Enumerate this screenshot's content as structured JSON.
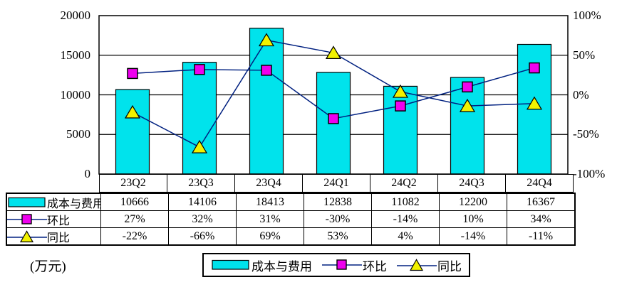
{
  "chart": {
    "unit_label": "(万元)",
    "left_axis": {
      "ticks": [
        {
          "label": "20000",
          "value": 20000
        },
        {
          "label": "15000",
          "value": 15000
        },
        {
          "label": "10000",
          "value": 10000
        },
        {
          "label": "5000",
          "value": 5000
        },
        {
          "label": "0",
          "value": 0
        }
      ]
    },
    "right_axis": {
      "ticks": [
        {
          "label": "100%",
          "value": 100
        },
        {
          "label": "50%",
          "value": 50
        },
        {
          "label": "0%",
          "value": 0
        },
        {
          "label": "-50%",
          "value": -50
        },
        {
          "label": "-100%",
          "value": -100
        }
      ]
    }
  },
  "chart_data": {
    "type": "bar",
    "subtype": "bar+line combo, dual axis",
    "categories": [
      "23Q2",
      "23Q3",
      "23Q4",
      "24Q1",
      "24Q2",
      "24Q3",
      "24Q4"
    ],
    "series": [
      {
        "name": "成本与费用",
        "type": "bar",
        "axis": "left",
        "marker": "none",
        "values": [
          10666,
          14106,
          18413,
          12838,
          11082,
          12200,
          16367
        ]
      },
      {
        "name": "环比",
        "type": "line",
        "axis": "right",
        "marker": "square",
        "values": [
          27,
          32,
          31,
          -30,
          -14,
          10,
          34
        ]
      },
      {
        "name": "同比",
        "type": "line",
        "axis": "right",
        "marker": "triangle",
        "values": [
          -22,
          -66,
          69,
          53,
          4,
          -14,
          -11
        ]
      }
    ],
    "title": "",
    "xlabel": "",
    "ylabel_left": "万元",
    "left_range": [
      0,
      20000
    ],
    "right_range": [
      -100,
      100
    ],
    "gridline_values_left": [
      5000,
      10000,
      15000
    ],
    "grid": true,
    "legend_position": "bottom"
  },
  "table": {
    "column_headers": [
      "23Q2",
      "23Q3",
      "23Q4",
      "24Q1",
      "24Q2",
      "24Q3",
      "24Q4"
    ],
    "rows": [
      {
        "label": "成本与费用",
        "symbol": "bar-swatch",
        "values": [
          "10666",
          "14106",
          "18413",
          "12838",
          "11082",
          "12200",
          "16367"
        ]
      },
      {
        "label": "环比",
        "symbol": "square-marker",
        "values": [
          "27%",
          "32%",
          "31%",
          "-30%",
          "-14%",
          "10%",
          "34%"
        ]
      },
      {
        "label": "同比",
        "symbol": "triangle-marker",
        "values": [
          "-22%",
          "-66%",
          "69%",
          "53%",
          "4%",
          "-14%",
          "-11%"
        ]
      }
    ]
  },
  "legend": {
    "items": [
      {
        "label": "成本与费用",
        "symbol": "bar-swatch"
      },
      {
        "label": "环比",
        "symbol": "square-marker"
      },
      {
        "label": "同比",
        "symbol": "triangle-marker"
      }
    ]
  },
  "colors": {
    "bar_fill": "#00E3EC",
    "square_fill": "#EE00EE",
    "triangle_fill": "#F2F200",
    "line_stroke": "#002080",
    "axis_stroke": "#000000",
    "background": "#FFFFFF"
  }
}
